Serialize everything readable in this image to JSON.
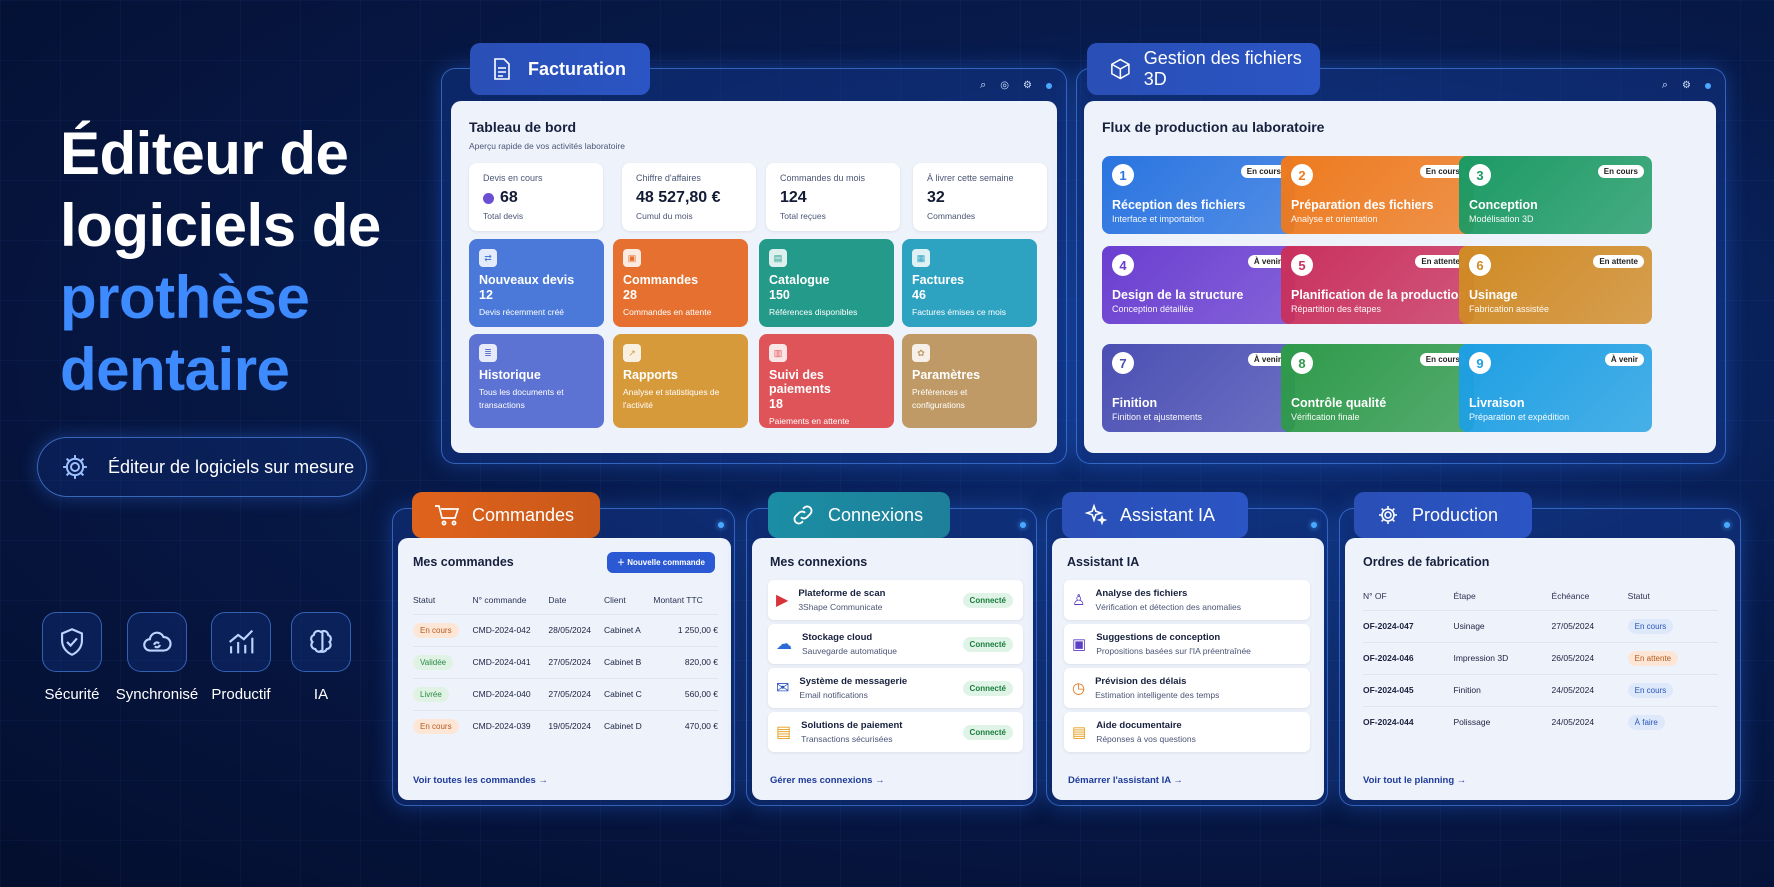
{
  "hero": {
    "l1": "Éditeur de",
    "l2": "logiciels de",
    "l3": "prothèse",
    "l4": "dentaire"
  },
  "pill": "Éditeur de logiciels sur mesure",
  "features": [
    {
      "label": "Sécurité",
      "icon": "shield-check-icon"
    },
    {
      "label": "Synchronisé",
      "icon": "cloud-sync-icon"
    },
    {
      "label": "Productif",
      "icon": "growth-chart-icon"
    },
    {
      "label": "IA",
      "icon": "brain-icon"
    }
  ],
  "facturation": {
    "tab": "Facturation",
    "title": "Tableau de bord",
    "subtitle": "Aperçu rapide de vos activités laboratoire",
    "stats": [
      {
        "label": "Devis en cours",
        "value": "68",
        "sub": "Total devis"
      },
      {
        "label": "Chiffre d'affaires",
        "value": "48 527,80 €",
        "sub": "Cumul du mois"
      },
      {
        "label": "Commandes du mois",
        "value": "124",
        "sub": "Total reçues"
      },
      {
        "label": "À livrer cette semaine",
        "value": "32",
        "sub": "Commandes"
      }
    ],
    "tiles": [
      {
        "name": "Nouveaux devis",
        "value": "12",
        "desc": "Devis récemment créé",
        "color": "#4a79d9"
      },
      {
        "name": "Commandes",
        "value": "28",
        "desc": "Commandes en attente",
        "color": "#e5702f"
      },
      {
        "name": "Catalogue",
        "value": "150",
        "desc": "Références disponibles",
        "color": "#239a8a"
      },
      {
        "name": "Factures",
        "value": "46",
        "desc": "Factures émises ce mois",
        "color": "#2ea2c1"
      },
      {
        "name": "Historique",
        "value": "",
        "desc": "Tous les documents et transactions",
        "color": "#5d73d3"
      },
      {
        "name": "Rapports",
        "value": "",
        "desc": "Analyse et statistiques de l'activité",
        "color": "#d79a3b"
      },
      {
        "name": "Suivi des paiements",
        "value": "18",
        "desc": "Paiements en attente",
        "color": "#df5458"
      },
      {
        "name": "Paramètres",
        "value": "",
        "desc": "Préférences et configurations",
        "color": "#bf9a66"
      }
    ]
  },
  "fichiers": {
    "tab": "Gestion des fichiers 3D",
    "title": "Flux de production au laboratoire",
    "steps": [
      {
        "n": "1",
        "name": "Réception des fichiers",
        "desc": "Interface et importation",
        "badge": "En cours",
        "color": "#2a74e0"
      },
      {
        "n": "2",
        "name": "Préparation des fichiers",
        "desc": "Analyse et orientation",
        "badge": "En cours",
        "color": "#ee7a1e"
      },
      {
        "n": "3",
        "name": "Conception",
        "desc": "Modélisation 3D",
        "badge": "En cours",
        "color": "#1c9a64"
      },
      {
        "n": "4",
        "name": "Design de la structure",
        "desc": "Conception détaillée",
        "badge": "À venir",
        "color": "#6a3ed0"
      },
      {
        "n": "5",
        "name": "Planification de la production",
        "desc": "Répartition des étapes",
        "badge": "En attente",
        "color": "#c9305d"
      },
      {
        "n": "6",
        "name": "Usinage",
        "desc": "Fabrication assistée",
        "badge": "En attente",
        "color": "#d08a25"
      },
      {
        "n": "7",
        "name": "Finition",
        "desc": "Finition et ajustements",
        "badge": "À venir",
        "color": "#4b4fb3"
      },
      {
        "n": "8",
        "name": "Contrôle qualité",
        "desc": "Vérification finale",
        "badge": "En cours",
        "color": "#2e9a4a"
      },
      {
        "n": "9",
        "name": "Livraison",
        "desc": "Préparation et expédition",
        "badge": "À venir",
        "color": "#1e9fe3"
      }
    ]
  },
  "commandes": {
    "tab": "Commandes",
    "title": "Mes commandes",
    "button": "Nouvelle commande",
    "headers": [
      "Statut",
      "N° commande",
      "Date",
      "Client",
      "Montant TTC"
    ],
    "rows": [
      {
        "status": "En cours",
        "num": "CMD-2024-042",
        "date": "28/05/2024",
        "client": "Cabinet A",
        "amount": "1 250,00 €",
        "bg": "#fde6d6",
        "fg": "#b65a1e"
      },
      {
        "status": "Validée",
        "num": "CMD-2024-041",
        "date": "27/05/2024",
        "client": "Cabinet B",
        "amount": "820,00 €",
        "bg": "#dff2e3",
        "fg": "#2b8a46"
      },
      {
        "status": "Livrée",
        "num": "CMD-2024-040",
        "date": "27/05/2024",
        "client": "Cabinet C",
        "amount": "560,00 €",
        "bg": "#dff2e3",
        "fg": "#2b8a46"
      },
      {
        "status": "En cours",
        "num": "CMD-2024-039",
        "date": "19/05/2024",
        "client": "Cabinet D",
        "amount": "470,00 €",
        "bg": "#fde6d6",
        "fg": "#b65a1e"
      }
    ],
    "link": "Voir toutes les commandes"
  },
  "connexions": {
    "tab": "Connexions",
    "title": "Mes connexions",
    "items": [
      {
        "name": "Plateforme de scan",
        "sub": "3Shape Communicate",
        "status": "Connecté"
      },
      {
        "name": "Stockage cloud",
        "sub": "Sauvegarde automatique",
        "status": "Connecté"
      },
      {
        "name": "Système de messagerie",
        "sub": "Email notifications",
        "status": "Connecté"
      },
      {
        "name": "Solutions de paiement",
        "sub": "Transactions sécurisées",
        "status": "Connecté"
      }
    ],
    "link": "Gérer mes connexions"
  },
  "assistant": {
    "tab": "Assistant IA",
    "title": "Assistant IA",
    "items": [
      {
        "name": "Analyse des fichiers",
        "sub": "Vérification et détection des anomalies"
      },
      {
        "name": "Suggestions de conception",
        "sub": "Propositions basées sur l'IA préentraînée"
      },
      {
        "name": "Prévision des délais",
        "sub": "Estimation intelligente des temps"
      },
      {
        "name": "Aide documentaire",
        "sub": "Réponses à vos questions"
      }
    ],
    "link": "Démarrer l'assistant IA"
  },
  "production": {
    "tab": "Production",
    "title": "Ordres de fabrication",
    "headers": [
      "N° OF",
      "Étape",
      "Échéance",
      "Statut"
    ],
    "rows": [
      {
        "of": "OF-2024-047",
        "step": "Usinage",
        "due": "27/05/2024",
        "status": "En cours",
        "bg": "#dde8fb",
        "fg": "#2956b5"
      },
      {
        "of": "OF-2024-046",
        "step": "Impression 3D",
        "due": "26/05/2024",
        "status": "En attente",
        "bg": "#fde6d6",
        "fg": "#b65a1e"
      },
      {
        "of": "OF-2024-045",
        "step": "Finition",
        "due": "24/05/2024",
        "status": "En cours",
        "bg": "#dde8fb",
        "fg": "#2956b5"
      },
      {
        "of": "OF-2024-044",
        "step": "Polissage",
        "due": "24/05/2024",
        "status": "À faire",
        "bg": "#dde8fb",
        "fg": "#2956b5"
      }
    ],
    "link": "Voir tout le planning"
  }
}
